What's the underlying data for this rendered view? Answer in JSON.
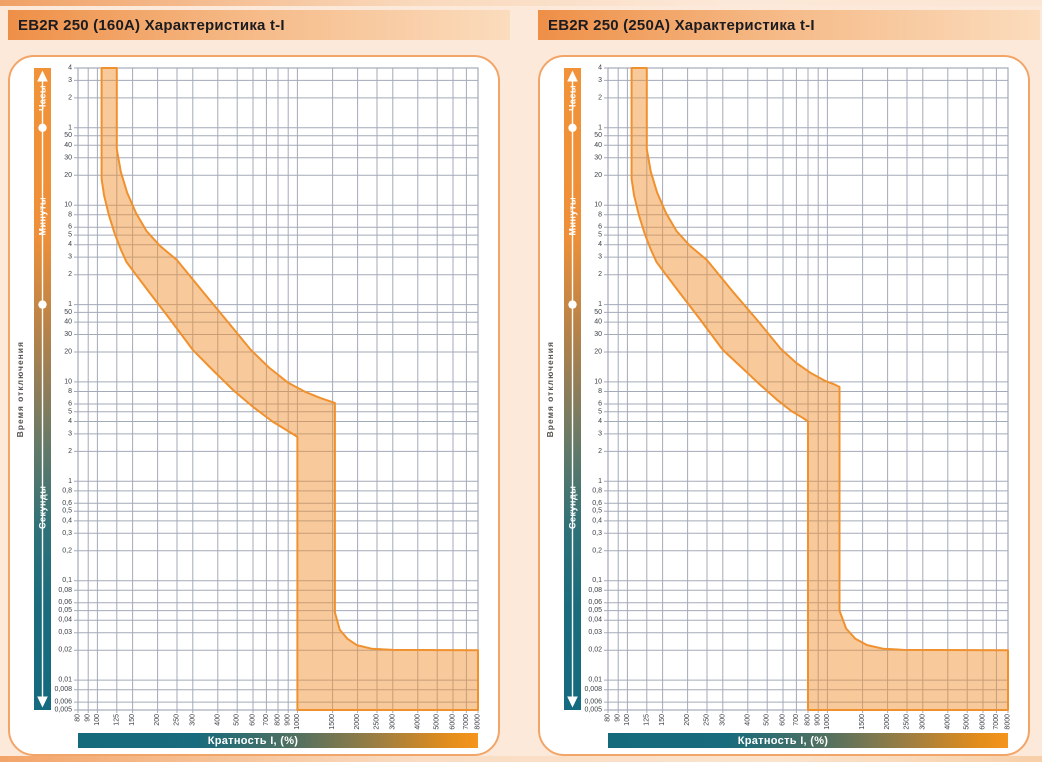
{
  "colors": {
    "page_bg": "#FCE9DA",
    "accent_orange": "#F0912F",
    "band_fill": "#F9C games28A",
    "grid": "#A3AAB8",
    "teal": "#156B7D",
    "header_grad_start": "#EE8F47",
    "header_grad_end": "#FBDCBD",
    "card_border": "#F2A569",
    "title_text": "#1B1B20",
    "tick_text": "#3A3F45"
  },
  "time_axis_gradient": [
    [
      0,
      "#F19238"
    ],
    [
      0.26,
      "#EE9039"
    ],
    [
      0.4,
      "#B98348"
    ],
    [
      0.5,
      "#8F7D59"
    ],
    [
      0.6,
      "#5F7969"
    ],
    [
      0.72,
      "#2E7178"
    ],
    [
      0.84,
      "#1A6C7D"
    ],
    [
      1,
      "#146A7E"
    ]
  ],
  "x_axis_bar_gradient": [
    [
      0,
      "#14697B"
    ],
    [
      0.3,
      "#186B7C"
    ],
    [
      0.55,
      "#53705F"
    ],
    [
      0.75,
      "#9D7E42"
    ],
    [
      0.92,
      "#E08C1C"
    ],
    [
      1,
      "#F5951C"
    ]
  ],
  "panels": [
    {
      "title": "EB2R 250 (160A) Характеристика t-I",
      "y_axis_title": "Время отключения",
      "x_axis_title": "Кратность I, (%)"
    },
    {
      "title": "EB2R 250 (250A) Характеристика t-I",
      "y_axis_title": "Время отключения",
      "x_axis_title": "Кратность I, (%)"
    }
  ],
  "chart_data": [
    {
      "type": "area",
      "title": "EB2R 250 (160A) Характеристика t-I",
      "xlabel": "Кратность I, (%)",
      "ylabel": "Время отключения",
      "x_scale": "log",
      "y_scale": "log",
      "x_range_percent": [
        80,
        8000
      ],
      "y_range_seconds": [
        0.005,
        14400
      ],
      "grid": true,
      "x_axis": {
        "ticks": [
          80,
          90,
          100,
          125,
          150,
          200,
          250,
          300,
          400,
          500,
          600,
          700,
          800,
          900,
          1000,
          1500,
          2000,
          2500,
          3000,
          4000,
          5000,
          6000,
          7000,
          8000
        ]
      },
      "y_axis": {
        "units": [
          {
            "name": "Часы",
            "seconds_per_unit": 3600,
            "range_seconds": [
              3600,
              14400
            ],
            "ticks": [
              4,
              3,
              2,
              1
            ]
          },
          {
            "name": "Минуты",
            "seconds_per_unit": 60,
            "range_seconds": [
              60,
              3600
            ],
            "ticks": [
              50,
              40,
              30,
              20,
              10,
              8,
              6,
              5,
              4,
              3,
              2,
              1
            ]
          },
          {
            "name": "Секунды",
            "seconds_per_unit": 1,
            "range_seconds": [
              0.005,
              60
            ],
            "ticks": [
              50,
              40,
              30,
              20,
              10,
              8,
              6,
              5,
              4,
              3,
              2,
              1,
              0.8,
              0.6,
              0.5,
              0.4,
              0.3,
              0.2,
              0.1,
              0.08,
              0.06,
              0.05,
              0.04,
              0.03,
              0.02,
              0.01,
              0.008,
              0.006,
              0.005
            ]
          }
        ]
      },
      "band": {
        "name": "trip-tolerance-band",
        "thermal_threshold_percent": [
          105,
          125
        ],
        "magnetic_threshold_percent": [
          1000,
          1540
        ],
        "instantaneous_time_seconds": 0.02,
        "lower_percent_seconds": [
          [
            105,
            14400
          ],
          [
            105,
            1100
          ],
          [
            108,
            750
          ],
          [
            114,
            480
          ],
          [
            122,
            310
          ],
          [
            131,
            215
          ],
          [
            140,
            160
          ],
          [
            180,
            82
          ],
          [
            230,
            43
          ],
          [
            300,
            21
          ],
          [
            380,
            13
          ],
          [
            480,
            8.2
          ],
          [
            600,
            5.6
          ],
          [
            750,
            4.0
          ],
          [
            900,
            3.2
          ],
          [
            1000,
            2.8
          ],
          [
            1000,
            0.005
          ],
          [
            8000,
            0.005
          ]
        ],
        "upper_percent_seconds": [
          [
            125,
            14400
          ],
          [
            125,
            2200
          ],
          [
            131,
            1300
          ],
          [
            141,
            800
          ],
          [
            156,
            500
          ],
          [
            176,
            330
          ],
          [
            205,
            235
          ],
          [
            250,
            168
          ],
          [
            340,
            79
          ],
          [
            450,
            40
          ],
          [
            585,
            21
          ],
          [
            720,
            14
          ],
          [
            900,
            9.8
          ],
          [
            1100,
            7.9
          ],
          [
            1300,
            6.9
          ],
          [
            1450,
            6.4
          ],
          [
            1540,
            6.15
          ],
          [
            1540,
            0.048
          ],
          [
            1630,
            0.032
          ],
          [
            1780,
            0.026
          ],
          [
            1980,
            0.0225
          ],
          [
            2350,
            0.0207
          ],
          [
            3000,
            0.0201
          ],
          [
            8000,
            0.02
          ]
        ]
      }
    },
    {
      "type": "area",
      "title": "EB2R 250 (250A) Характеристика t-I",
      "xlabel": "Кратность I, (%)",
      "ylabel": "Время отключения",
      "x_scale": "log",
      "y_scale": "log",
      "x_range_percent": [
        80,
        8000
      ],
      "y_range_seconds": [
        0.005,
        14400
      ],
      "grid": true,
      "x_axis": {
        "ticks": [
          80,
          90,
          100,
          125,
          150,
          200,
          250,
          300,
          400,
          500,
          600,
          700,
          800,
          900,
          1000,
          1500,
          2000,
          2500,
          3000,
          4000,
          5000,
          6000,
          7000,
          8000
        ]
      },
      "y_axis": {
        "units": [
          {
            "name": "Часы",
            "seconds_per_unit": 3600,
            "range_seconds": [
              3600,
              14400
            ],
            "ticks": [
              4,
              3,
              2,
              1
            ]
          },
          {
            "name": "Минуты",
            "seconds_per_unit": 60,
            "range_seconds": [
              60,
              3600
            ],
            "ticks": [
              50,
              40,
              30,
              20,
              10,
              8,
              6,
              5,
              4,
              3,
              2,
              1
            ]
          },
          {
            "name": "Секунды",
            "seconds_per_unit": 1,
            "range_seconds": [
              0.005,
              60
            ],
            "ticks": [
              50,
              40,
              30,
              20,
              10,
              8,
              6,
              5,
              4,
              3,
              2,
              1,
              0.8,
              0.6,
              0.5,
              0.4,
              0.3,
              0.2,
              0.1,
              0.08,
              0.06,
              0.05,
              0.04,
              0.03,
              0.02,
              0.01,
              0.008,
              0.006,
              0.005
            ]
          }
        ]
      },
      "band": {
        "name": "trip-tolerance-band",
        "thermal_threshold_percent": [
          105,
          125
        ],
        "magnetic_threshold_percent": [
          800,
          1150
        ],
        "instantaneous_time_seconds": 0.02,
        "lower_percent_seconds": [
          [
            105,
            14400
          ],
          [
            105,
            1100
          ],
          [
            108,
            750
          ],
          [
            114,
            480
          ],
          [
            122,
            310
          ],
          [
            131,
            215
          ],
          [
            140,
            160
          ],
          [
            180,
            82
          ],
          [
            230,
            43
          ],
          [
            300,
            21
          ],
          [
            380,
            13.5
          ],
          [
            460,
            9.4
          ],
          [
            560,
            6.6
          ],
          [
            660,
            5.1
          ],
          [
            760,
            4.3
          ],
          [
            800,
            4.0
          ],
          [
            800,
            0.005
          ],
          [
            8000,
            0.005
          ]
        ],
        "upper_percent_seconds": [
          [
            125,
            14400
          ],
          [
            125,
            2200
          ],
          [
            131,
            1300
          ],
          [
            141,
            800
          ],
          [
            156,
            500
          ],
          [
            176,
            330
          ],
          [
            205,
            235
          ],
          [
            250,
            168
          ],
          [
            340,
            79
          ],
          [
            450,
            41
          ],
          [
            585,
            21.5
          ],
          [
            700,
            15.5
          ],
          [
            830,
            12.2
          ],
          [
            980,
            10.2
          ],
          [
            1090,
            9.4
          ],
          [
            1150,
            8.9
          ],
          [
            1150,
            0.05
          ],
          [
            1240,
            0.033
          ],
          [
            1380,
            0.026
          ],
          [
            1580,
            0.0225
          ],
          [
            1900,
            0.0207
          ],
          [
            2400,
            0.0201
          ],
          [
            8000,
            0.02
          ]
        ]
      }
    }
  ]
}
